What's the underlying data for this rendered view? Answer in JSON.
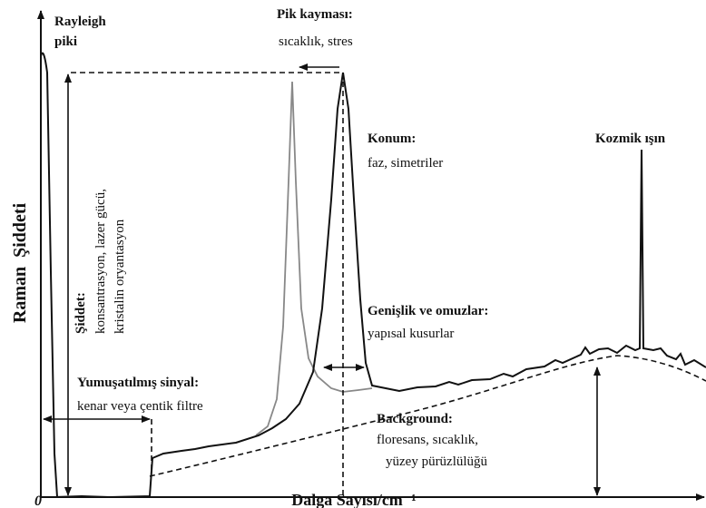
{
  "y_axis_label": "Raman  Şiddeti",
  "x_axis_label": "Dalga Sayısı/cm⁻¹",
  "origin": "0",
  "annotations": [
    {
      "title": "Rayleigh",
      "lines": [
        "piki"
      ]
    },
    {
      "title": "Pik kayması:",
      "lines": [
        "sıcaklık, stres"
      ]
    },
    {
      "title": "Konum:",
      "lines": [
        "faz, simetriler"
      ]
    },
    {
      "title": "Kozmik ışın",
      "lines": []
    },
    {
      "title": "Şiddet:",
      "lines": [
        "konsantrasyon, lazer gücü,",
        "kristalin oryantasyon"
      ]
    },
    {
      "title": "Genişlik ve omuzlar:",
      "lines": [
        "yapısal kusurlar"
      ]
    },
    {
      "title": "Yumuşatılmış sinyal:",
      "lines": [
        "kenar veya çentik filtre"
      ]
    },
    {
      "title": "Background:",
      "lines": [
        "floresans, sıcaklık,",
        "yüzey pürüzlülüğü"
      ]
    }
  ]
}
